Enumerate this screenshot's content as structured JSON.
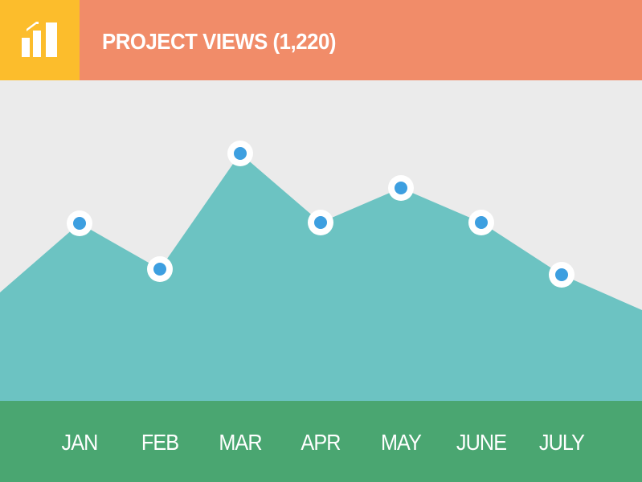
{
  "colors": {
    "header_accent": "#fcbd2c",
    "header_bar": "#f18c69",
    "plot_background": "#ebebeb",
    "area_fill": "#6cc3c2",
    "point_fill": "#3d9fe0",
    "point_ring": "#ffffff",
    "footer": "#4aa671"
  },
  "header": {
    "icon": "bar-chart-icon",
    "title": "PROJECT VIEWS (1,220)"
  },
  "chart_data": {
    "type": "area",
    "title": "PROJECT VIEWS (1,220)",
    "categories": [
      "JAN",
      "FEB",
      "MAR",
      "APR",
      "MAY",
      "JUNE",
      "JULY"
    ],
    "values": [
      222,
      165,
      309,
      223,
      266,
      223,
      158
    ],
    "edge_values": {
      "start": 136,
      "end": 114
    },
    "ylim": [
      0,
      400
    ],
    "xlabel": "",
    "ylabel": "",
    "grid": false,
    "legend": "none",
    "markers": true
  }
}
